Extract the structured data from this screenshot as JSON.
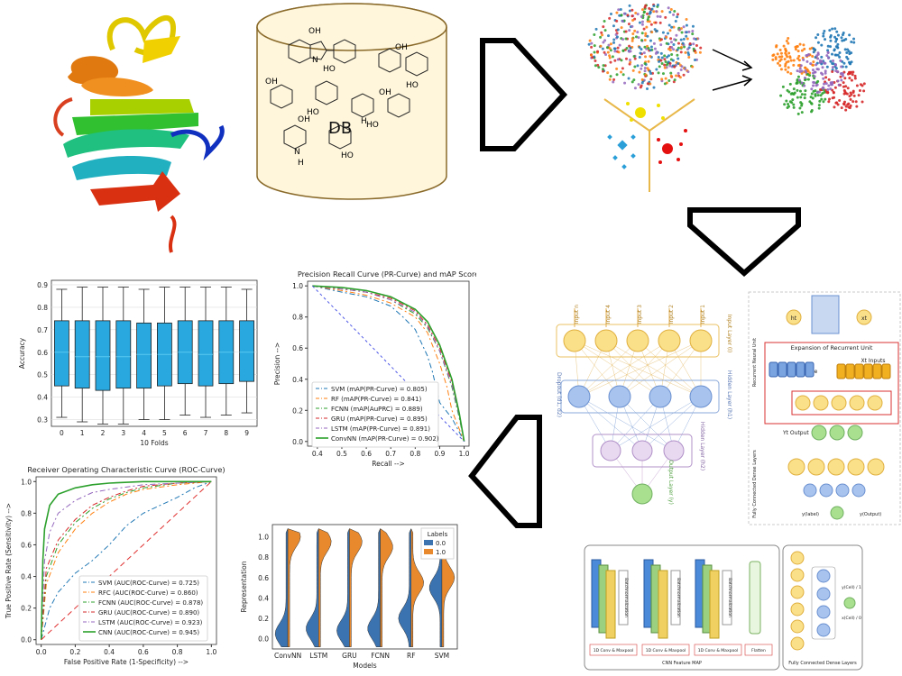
{
  "db_cylinder": {
    "label": "DB",
    "atom_labels": {
      "oh": "OH",
      "ho": "HO",
      "n": "N",
      "h": "H"
    }
  },
  "box_plot": {
    "ylabel": "Accuracy",
    "xlabel": "10 Folds",
    "y_ticks": [
      "0.3",
      "0.4",
      "0.5",
      "0.6",
      "0.7",
      "0.8",
      "0.9"
    ],
    "x_ticks": [
      "0",
      "1",
      "2",
      "3",
      "4",
      "5",
      "6",
      "7",
      "8",
      "9"
    ]
  },
  "pr_curve": {
    "title": "Precision Recall Curve (PR-Curve) and mAP Score",
    "xlabel": "Recall -->",
    "ylabel": "Precision -->",
    "x_ticks": [
      "0.4",
      "0.5",
      "0.6",
      "0.7",
      "0.8",
      "0.9",
      "1.0"
    ],
    "y_ticks": [
      "0.0",
      "0.2",
      "0.4",
      "0.6",
      "0.8",
      "1.0"
    ],
    "legend": [
      {
        "label": "SVM (mAP(PR-Curve) = 0.805)",
        "color": "#1f77b4"
      },
      {
        "label": "RF (mAP(PR-Curve) = 0.841)",
        "color": "#ff7f0e"
      },
      {
        "label": "FCNN (mAP(AuPRC) = 0.889)",
        "color": "#2ca02c"
      },
      {
        "label": "GRU (mAP(PR-Curve) = 0.895)",
        "color": "#d62728"
      },
      {
        "label": "LSTM (mAP(PR-Curve) = 0.891)",
        "color": "#9467bd"
      },
      {
        "label": "ConvNN (mAP(PR-Curve) = 0.902)",
        "color": "#2ca02c"
      }
    ]
  },
  "roc_curve": {
    "title": "Receiver Operating Characteristic Curve (ROC-Curve)",
    "xlabel": "False Positive Rate (1-Specificity) -->",
    "ylabel": "True Positive Rate (Sensitivity) -->",
    "x_ticks": [
      "0.0",
      "0.2",
      "0.4",
      "0.6",
      "0.8",
      "1.0"
    ],
    "y_ticks": [
      "0.0",
      "0.2",
      "0.4",
      "0.6",
      "0.8",
      "1.0"
    ],
    "legend": [
      {
        "label": "SVM (AUC(ROC-Curve) = 0.725)",
        "color": "#1f77b4"
      },
      {
        "label": "RFC (AUC(ROC-Curve) = 0.860)",
        "color": "#ff7f0e"
      },
      {
        "label": "FCNN (AUC(ROC-Curve) = 0.878)",
        "color": "#2ca02c"
      },
      {
        "label": "GRU (AUC(ROC-Curve) = 0.890)",
        "color": "#d62728"
      },
      {
        "label": "LSTM (AUC(ROC-Curve) = 0.923)",
        "color": "#9467bd"
      },
      {
        "label": "CNN (AUC(ROC-Curve) = 0.945)",
        "color": "#2ca02c"
      }
    ]
  },
  "violin_plot": {
    "ylabel": "Representation",
    "xlabel": "Models",
    "y_ticks": [
      "0.0",
      "0.2",
      "0.4",
      "0.6",
      "0.8",
      "1.0"
    ],
    "x_ticks": [
      "ConvNN",
      "LSTM",
      "GRU",
      "FCNN",
      "RF",
      "SVM"
    ],
    "legend_title": "Labels",
    "legend": [
      {
        "label": "0.0",
        "color": "#3a73b0"
      },
      {
        "label": "1.0",
        "color": "#e8892d"
      }
    ]
  },
  "fcnn_diagram": {
    "inputs": [
      "Input n",
      "Input 4",
      "Input 3",
      "Input 2",
      "Input 1"
    ],
    "input_layer": "Input Layer (I)",
    "hidden1": "Hidden Layer (h1)",
    "hidden2": "Hidden Layer (h2)",
    "dropout": "Dropout (d1, d2)",
    "output": "Output Layer (y)"
  },
  "rnn_diagram": {
    "expansion": "Expansion of Recurrent Unit",
    "inputs": "Xt Inputs",
    "internal": "ht Internal state",
    "output": "Yt Output",
    "h_label": "ht",
    "x_label": "xt",
    "side1": "Recurrent Neural Unit",
    "side2": "Fully Connected Dense Layers",
    "y_small": "y(label)",
    "side_output": "y(Output)"
  },
  "cnn_diagram": {
    "blocks": [
      "1D Conv & Maxpool",
      "1D Conv & Maxpool",
      "1D Conv & Maxpool",
      "Flatten"
    ],
    "batchnorm": "Batchnormalization",
    "feature_map": "CNN Feature MAP",
    "dense": "Fully Connected Dense Layers",
    "out1": "y(Cell) / 1",
    "out0": "x(Cell) / 0"
  },
  "chart_data": [
    {
      "type": "box",
      "ylabel": "Accuracy",
      "xlabel": "10 Folds",
      "categories": [
        "0",
        "1",
        "2",
        "3",
        "4",
        "5",
        "6",
        "7",
        "8",
        "9"
      ],
      "ylim": [
        0.27,
        0.92
      ],
      "boxes": [
        {
          "min": 0.31,
          "q1": 0.45,
          "median": 0.6,
          "q3": 0.74,
          "max": 0.88
        },
        {
          "min": 0.29,
          "q1": 0.44,
          "median": 0.58,
          "q3": 0.74,
          "max": 0.89
        },
        {
          "min": 0.28,
          "q1": 0.43,
          "median": 0.58,
          "q3": 0.74,
          "max": 0.89
        },
        {
          "min": 0.28,
          "q1": 0.44,
          "median": 0.58,
          "q3": 0.74,
          "max": 0.89
        },
        {
          "min": 0.3,
          "q1": 0.44,
          "median": 0.59,
          "q3": 0.73,
          "max": 0.88
        },
        {
          "min": 0.3,
          "q1": 0.45,
          "median": 0.59,
          "q3": 0.73,
          "max": 0.89
        },
        {
          "min": 0.32,
          "q1": 0.46,
          "median": 0.6,
          "q3": 0.74,
          "max": 0.89
        },
        {
          "min": 0.31,
          "q1": 0.45,
          "median": 0.59,
          "q3": 0.74,
          "max": 0.89
        },
        {
          "min": 0.32,
          "q1": 0.46,
          "median": 0.6,
          "q3": 0.74,
          "max": 0.89
        },
        {
          "min": 0.33,
          "q1": 0.47,
          "median": 0.6,
          "q3": 0.74,
          "max": 0.88
        }
      ],
      "grid": true
    },
    {
      "type": "line",
      "title": "Precision Recall Curve (PR-Curve) and mAP Score",
      "xlabel": "Recall -->",
      "ylabel": "Precision -->",
      "xlim": [
        0.36,
        1.02
      ],
      "ylim": [
        -0.03,
        1.03
      ],
      "series": [
        {
          "name": "SVM (mAP(PR-Curve) = 0.805)",
          "color": "#1f77b4",
          "dash": "6,3,2,3",
          "x": [
            0.38,
            0.5,
            0.6,
            0.7,
            0.75,
            0.8,
            0.85,
            0.87,
            0.9,
            0.95,
            1.0
          ],
          "y": [
            1.0,
            0.96,
            0.93,
            0.87,
            0.8,
            0.72,
            0.55,
            0.45,
            0.25,
            0.15,
            0.0
          ]
        },
        {
          "name": "RF (mAP(PR-Curve) = 0.841)",
          "color": "#ff7f0e",
          "dash": "6,3,2,3",
          "x": [
            0.38,
            0.5,
            0.6,
            0.7,
            0.8,
            0.85,
            0.9,
            0.93,
            0.95,
            1.0
          ],
          "y": [
            1.0,
            0.97,
            0.94,
            0.89,
            0.8,
            0.7,
            0.5,
            0.35,
            0.2,
            0.0
          ]
        },
        {
          "name": "FCNN (mAP(AuPRC) = 0.889)",
          "color": "#2ca02c",
          "dash": "6,3,2,3",
          "x": [
            0.38,
            0.5,
            0.6,
            0.7,
            0.8,
            0.85,
            0.9,
            0.95,
            0.98,
            1.0
          ],
          "y": [
            1.0,
            0.98,
            0.96,
            0.91,
            0.82,
            0.73,
            0.58,
            0.35,
            0.15,
            0.0
          ]
        },
        {
          "name": "GRU (mAP(PR-Curve) = 0.895)",
          "color": "#d62728",
          "dash": "6,3,2,3",
          "x": [
            0.38,
            0.5,
            0.6,
            0.7,
            0.8,
            0.85,
            0.9,
            0.95,
            0.98,
            1.0
          ],
          "y": [
            1.0,
            0.98,
            0.96,
            0.92,
            0.84,
            0.75,
            0.6,
            0.38,
            0.17,
            0.0
          ]
        },
        {
          "name": "LSTM (mAP(PR-Curve) = 0.891)",
          "color": "#9467bd",
          "dash": "6,3,2,3",
          "x": [
            0.38,
            0.5,
            0.6,
            0.7,
            0.8,
            0.85,
            0.9,
            0.95,
            0.98,
            1.0
          ],
          "y": [
            1.0,
            0.98,
            0.96,
            0.91,
            0.83,
            0.74,
            0.58,
            0.36,
            0.16,
            0.0
          ]
        },
        {
          "name": "ConvNN (mAP(PR-Curve) = 0.902)",
          "color": "#2ca02c",
          "dash": "",
          "x": [
            0.38,
            0.5,
            0.6,
            0.7,
            0.8,
            0.85,
            0.9,
            0.95,
            0.98,
            1.0
          ],
          "y": [
            1.0,
            0.99,
            0.97,
            0.93,
            0.85,
            0.77,
            0.62,
            0.4,
            0.18,
            0.0
          ]
        },
        {
          "name": "",
          "color": "#4e58e6",
          "dash": "3,3",
          "x": [
            0.38,
            1.0
          ],
          "y": [
            1.0,
            0.0
          ]
        }
      ]
    },
    {
      "type": "line",
      "title": "Receiver Operating Characteristic Curve (ROC-Curve)",
      "xlabel": "False Positive Rate (1-Specificity) -->",
      "ylabel": "True Positive Rate (Sensitivity) -->",
      "xlim": [
        -0.03,
        1.03
      ],
      "ylim": [
        -0.03,
        1.03
      ],
      "series": [
        {
          "name": "SVM (AUC(ROC-Curve) = 0.725)",
          "color": "#1f77b4",
          "dash": "6,3,2,3",
          "x": [
            0,
            0.05,
            0.1,
            0.2,
            0.3,
            0.4,
            0.5,
            0.6,
            0.7,
            0.8,
            0.9,
            1.0
          ],
          "y": [
            0,
            0.2,
            0.3,
            0.42,
            0.5,
            0.6,
            0.72,
            0.8,
            0.85,
            0.9,
            0.96,
            1.0
          ]
        },
        {
          "name": "RFC (AUC(ROC-Curve) = 0.860)",
          "color": "#ff7f0e",
          "dash": "6,3,2,3",
          "x": [
            0,
            0.03,
            0.1,
            0.2,
            0.3,
            0.4,
            0.5,
            0.6,
            0.8,
            1.0
          ],
          "y": [
            0,
            0.35,
            0.55,
            0.7,
            0.8,
            0.87,
            0.92,
            0.95,
            0.98,
            1.0
          ]
        },
        {
          "name": "FCNN (AUC(ROC-Curve) = 0.878)",
          "color": "#2ca02c",
          "dash": "6,3,2,3",
          "x": [
            0,
            0.03,
            0.1,
            0.2,
            0.3,
            0.4,
            0.5,
            0.6,
            0.8,
            1.0
          ],
          "y": [
            0,
            0.4,
            0.6,
            0.74,
            0.83,
            0.89,
            0.93,
            0.96,
            0.99,
            1.0
          ]
        },
        {
          "name": "GRU (AUC(ROC-Curve) = 0.890)",
          "color": "#d62728",
          "dash": "6,3,2,3",
          "x": [
            0,
            0.03,
            0.1,
            0.2,
            0.3,
            0.4,
            0.5,
            0.6,
            0.8,
            1.0
          ],
          "y": [
            0,
            0.45,
            0.63,
            0.76,
            0.85,
            0.9,
            0.94,
            0.97,
            0.99,
            1.0
          ]
        },
        {
          "name": "LSTM (AUC(ROC-Curve) = 0.923)",
          "color": "#9467bd",
          "dash": "6,3,2,3",
          "x": [
            0,
            0.02,
            0.05,
            0.1,
            0.2,
            0.3,
            0.4,
            0.6,
            0.8,
            1.0
          ],
          "y": [
            0,
            0.5,
            0.68,
            0.8,
            0.88,
            0.93,
            0.95,
            0.98,
            0.99,
            1.0
          ]
        },
        {
          "name": "CNN (AUC(ROC-Curve) = 0.945)",
          "color": "#2ca02c",
          "dash": "",
          "x": [
            0,
            0.01,
            0.02,
            0.05,
            0.1,
            0.2,
            0.3,
            0.4,
            0.6,
            0.8,
            1.0
          ],
          "y": [
            0,
            0.5,
            0.7,
            0.85,
            0.92,
            0.96,
            0.98,
            0.99,
            1.0,
            1.0,
            1.0
          ]
        },
        {
          "name": "",
          "color": "#e03030",
          "dash": "6,4",
          "x": [
            0,
            1.0
          ],
          "y": [
            0,
            1.0
          ]
        }
      ]
    },
    {
      "type": "violin",
      "ylabel": "Representation",
      "xlabel": "Models",
      "categories": [
        "ConvNN",
        "LSTM",
        "GRU",
        "FCNN",
        "RF",
        "SVM"
      ],
      "ylim": [
        -0.1,
        1.12
      ],
      "series": [
        {
          "name": "0.0",
          "color": "#3a73b0",
          "peaks": [
            0.05,
            0.1,
            0.08,
            0.1,
            0.2,
            0.5
          ]
        },
        {
          "name": "1.0",
          "color": "#e8892d",
          "peaks": [
            1.0,
            0.95,
            0.95,
            0.9,
            0.55,
            0.6
          ]
        }
      ]
    }
  ]
}
